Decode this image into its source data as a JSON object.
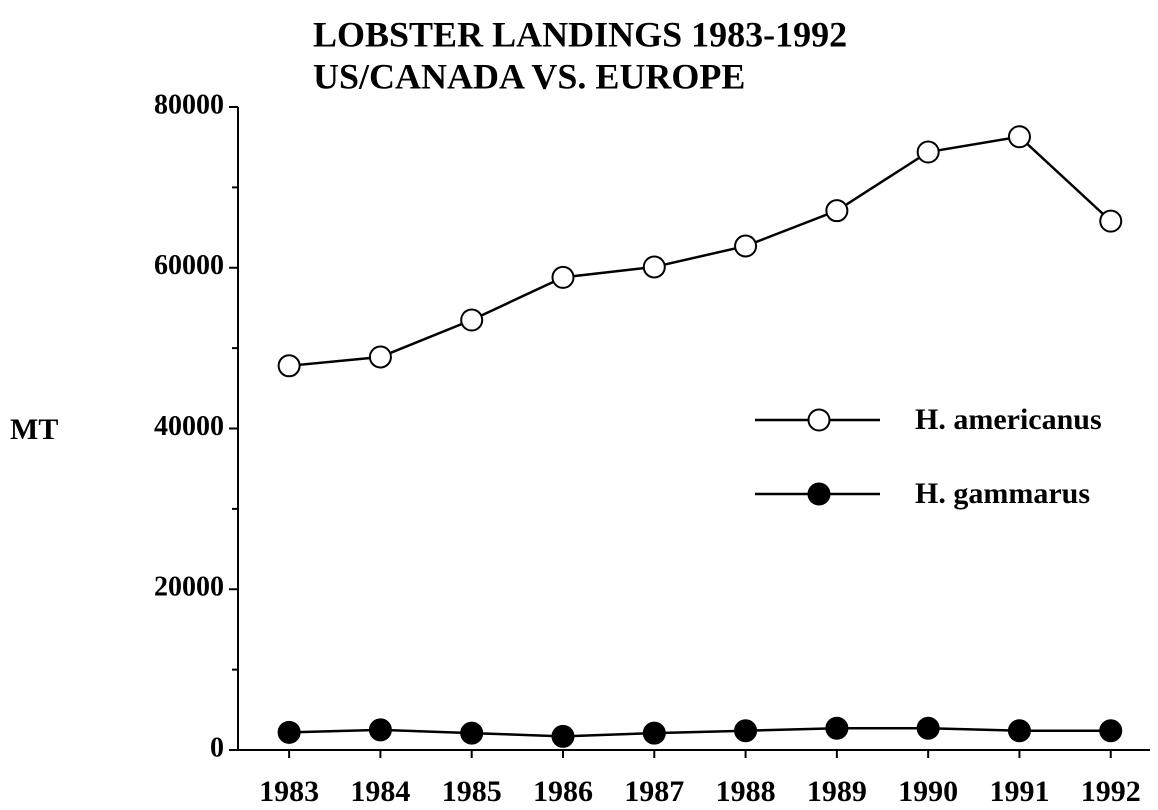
{
  "chart_data": {
    "type": "line",
    "title": [
      "LOBSTER LANDINGS 1983-1992",
      "US/CANADA VS. EUROPE"
    ],
    "y_label": "MT",
    "x": [
      1983,
      1984,
      1985,
      1986,
      1987,
      1988,
      1989,
      1990,
      1991,
      1992
    ],
    "xlim": [
      1982.44,
      1992.43
    ],
    "xticks": [
      1983,
      1984,
      1985,
      1986,
      1987,
      1988,
      1989,
      1990,
      1991,
      1992
    ],
    "ylim": [
      0,
      80000
    ],
    "yticks": [
      0,
      20000,
      40000,
      60000,
      80000
    ],
    "yticks_minor": [
      10000,
      30000,
      50000,
      70000
    ],
    "legend_position": "center-right",
    "series": [
      {
        "name": "H. americanus",
        "color": "#000000",
        "marker_fill": "#ffffff",
        "values": [
          47800,
          48900,
          53500,
          58800,
          60100,
          62700,
          67100,
          74400,
          76300,
          65800
        ]
      },
      {
        "name": "H. gammarus",
        "color": "#000000",
        "marker_fill": "#000000",
        "values": [
          2200,
          2500,
          2100,
          1700,
          2100,
          2400,
          2700,
          2700,
          2400,
          2400
        ]
      }
    ]
  }
}
